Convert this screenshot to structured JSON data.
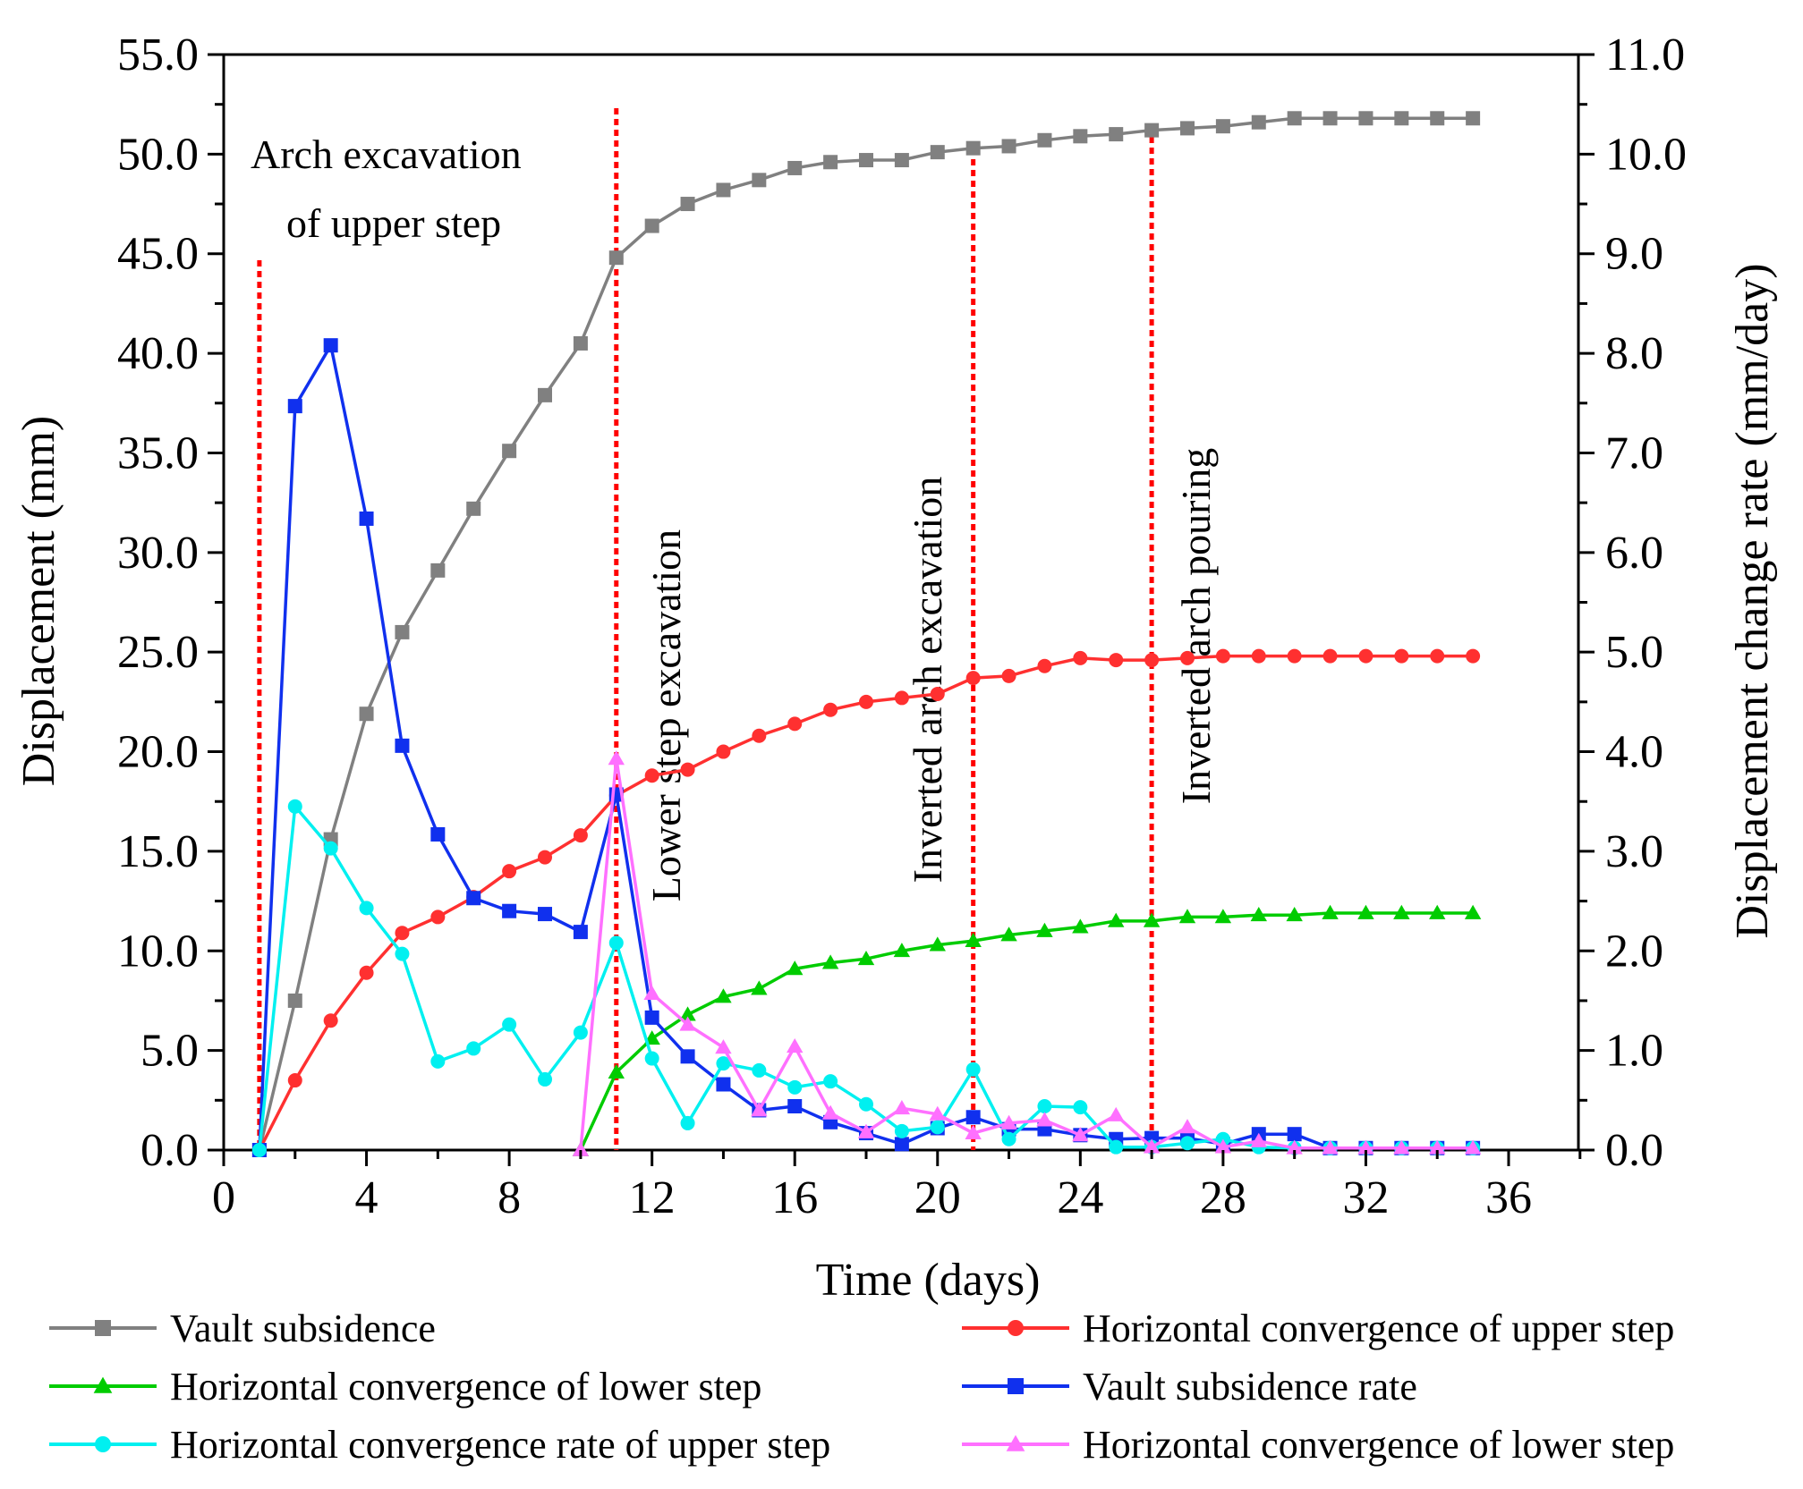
{
  "chart_data": {
    "type": "line",
    "xlabel": "Time (days)",
    "ylabel_left": "Displacement (mm)",
    "ylabel_right": "Displacement change rate (mm/day)",
    "xlim": [
      0,
      38
    ],
    "ylim_left": [
      0,
      55
    ],
    "ylim_right": [
      0,
      11
    ],
    "x_ticks": [
      "0",
      "4",
      "8",
      "12",
      "16",
      "20",
      "24",
      "28",
      "32",
      "36"
    ],
    "y_ticks_left": [
      "0.0",
      "5.0",
      "10.0",
      "15.0",
      "20.0",
      "25.0",
      "30.0",
      "35.0",
      "40.0",
      "45.0",
      "50.0",
      "55.0"
    ],
    "y_ticks_right": [
      "0.0",
      "1.0",
      "2.0",
      "3.0",
      "4.0",
      "5.0",
      "6.0",
      "7.0",
      "8.0",
      "9.0",
      "10.0",
      "11.0"
    ],
    "colors": {
      "gray": "#808080",
      "red": "#ff3030",
      "green": "#00cc00",
      "blue": "#1030ee",
      "cyan": "#00f0f0",
      "magenta": "#ff70ff",
      "marker_line": "#ff0000"
    },
    "events": [
      {
        "x": 1,
        "label_lines": [
          "Arch excavation",
          "of upper step"
        ],
        "orientation": "horizontal"
      },
      {
        "x": 11,
        "label_lines": [
          "Lower step excavation"
        ],
        "orientation": "vertical"
      },
      {
        "x": 21,
        "label_lines": [
          "Inverted arch excavation"
        ],
        "orientation": "vertical"
      },
      {
        "x": 26,
        "label_lines": [
          "Inverted arch pouring"
        ],
        "orientation": "vertical"
      }
    ],
    "series": [
      {
        "name": "Vault subsidence",
        "axis": "left",
        "color": "gray",
        "marker": "square",
        "x": [
          1,
          2,
          3,
          4,
          5,
          6,
          7,
          8,
          9,
          10,
          11,
          12,
          13,
          14,
          15,
          16,
          17,
          18,
          19,
          20,
          21,
          22,
          23,
          24,
          25,
          26,
          27,
          28,
          29,
          30,
          31,
          32,
          33,
          34,
          35
        ],
        "values": [
          0,
          7.5,
          15.6,
          21.9,
          26.0,
          29.1,
          32.2,
          35.1,
          37.9,
          40.5,
          44.8,
          46.4,
          47.5,
          48.2,
          48.7,
          49.3,
          49.6,
          49.7,
          49.7,
          50.1,
          50.3,
          50.4,
          50.7,
          50.9,
          51.0,
          51.2,
          51.3,
          51.4,
          51.6,
          51.8,
          51.8,
          51.8,
          51.8,
          51.8,
          51.8
        ]
      },
      {
        "name": "Horizontal convergence of upper step",
        "axis": "left",
        "color": "red",
        "marker": "circle",
        "x": [
          1,
          2,
          3,
          4,
          5,
          6,
          7,
          8,
          9,
          10,
          11,
          12,
          13,
          14,
          15,
          16,
          17,
          18,
          19,
          20,
          21,
          22,
          23,
          24,
          25,
          26,
          27,
          28,
          29,
          30,
          31,
          32,
          33,
          34,
          35
        ],
        "values": [
          0,
          3.5,
          6.5,
          8.9,
          10.9,
          11.7,
          12.7,
          14.0,
          14.7,
          15.8,
          17.8,
          18.8,
          19.1,
          20.0,
          20.8,
          21.4,
          22.1,
          22.5,
          22.7,
          22.9,
          23.7,
          23.8,
          24.3,
          24.7,
          24.6,
          24.6,
          24.7,
          24.8,
          24.8,
          24.8,
          24.8,
          24.8,
          24.8,
          24.8,
          24.8
        ]
      },
      {
        "name": "Horizontal convergence of lower step",
        "axis": "left",
        "color": "green",
        "marker": "triangle",
        "x": [
          10,
          11,
          12,
          13,
          14,
          15,
          16,
          17,
          18,
          19,
          20,
          21,
          22,
          23,
          24,
          25,
          26,
          27,
          28,
          29,
          30,
          31,
          32,
          33,
          34,
          35
        ],
        "values": [
          0,
          3.9,
          5.6,
          6.8,
          7.7,
          8.1,
          9.1,
          9.4,
          9.6,
          10.0,
          10.3,
          10.5,
          10.8,
          11.0,
          11.2,
          11.5,
          11.5,
          11.7,
          11.7,
          11.8,
          11.8,
          11.9,
          11.9,
          11.9,
          11.9,
          11.9
        ]
      },
      {
        "name": "Vault subsidence rate",
        "axis": "right",
        "color": "blue",
        "marker": "square",
        "x": [
          1,
          2,
          3,
          4,
          5,
          6,
          7,
          8,
          9,
          10,
          11,
          12,
          13,
          14,
          15,
          16,
          17,
          18,
          19,
          20,
          21,
          22,
          23,
          24,
          25,
          26,
          27,
          28,
          29,
          30,
          31,
          32,
          33,
          34,
          35
        ],
        "values": [
          0,
          7.47,
          8.08,
          6.34,
          4.06,
          3.17,
          2.53,
          2.4,
          2.37,
          2.19,
          3.57,
          1.33,
          0.94,
          0.66,
          0.4,
          0.44,
          0.28,
          0.17,
          0.06,
          0.22,
          0.33,
          0.21,
          0.21,
          0.15,
          0.11,
          0.12,
          0.12,
          0.06,
          0.16,
          0.16,
          0.02,
          0.02,
          0.02,
          0.02,
          0.02
        ]
      },
      {
        "name": "Horizontal convergence rate of upper step",
        "axis": "right",
        "color": "cyan",
        "marker": "circle",
        "x": [
          1,
          2,
          3,
          4,
          5,
          6,
          7,
          8,
          9,
          10,
          11,
          12,
          13,
          14,
          15,
          16,
          17,
          18,
          19,
          20,
          21,
          22,
          23,
          24,
          25,
          26,
          27,
          28,
          29,
          30,
          31,
          32,
          33,
          34,
          35
        ],
        "values": [
          0,
          3.45,
          3.03,
          2.43,
          1.97,
          0.89,
          1.02,
          1.26,
          0.71,
          1.18,
          2.08,
          0.92,
          0.27,
          0.87,
          0.8,
          0.63,
          0.69,
          0.46,
          0.19,
          0.23,
          0.81,
          0.11,
          0.44,
          0.43,
          0.03,
          0.03,
          0.07,
          0.11,
          0.03,
          0.02,
          0.02,
          0.02,
          0.02,
          0.02,
          0.02
        ]
      },
      {
        "name": "Horizontal convergence of lower step",
        "axis": "right",
        "color": "magenta",
        "marker": "triangle",
        "x": [
          10,
          11,
          12,
          13,
          14,
          15,
          16,
          17,
          18,
          19,
          20,
          21,
          22,
          23,
          24,
          25,
          26,
          27,
          28,
          29,
          30,
          31,
          32,
          33,
          34,
          35
        ],
        "values": [
          0,
          3.93,
          1.57,
          1.26,
          1.03,
          0.4,
          1.04,
          0.37,
          0.18,
          0.42,
          0.36,
          0.17,
          0.27,
          0.3,
          0.15,
          0.35,
          0.03,
          0.23,
          0.03,
          0.09,
          0.02,
          0.02,
          0.02,
          0.02,
          0.02,
          0.02
        ]
      }
    ]
  },
  "legend": [
    {
      "label": "Vault subsidence",
      "series": 0
    },
    {
      "label": "Horizontal convergence of upper step",
      "series": 1
    },
    {
      "label": "Horizontal convergence of lower step",
      "series": 2
    },
    {
      "label": "Vault subsidence rate",
      "series": 3
    },
    {
      "label": "Horizontal convergence rate of upper step",
      "series": 4
    },
    {
      "label": "Horizontal convergence of lower step",
      "series": 5
    }
  ]
}
